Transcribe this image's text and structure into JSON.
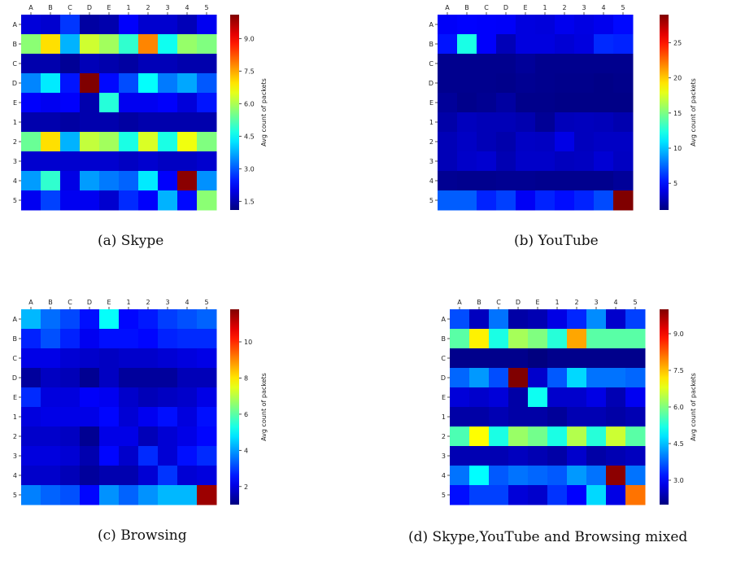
{
  "chart_data": [
    {
      "type": "heatmap",
      "caption": "(a) Skype",
      "labels": [
        "A",
        "B",
        "C",
        "D",
        "E",
        "1",
        "2",
        "3",
        "4",
        "5"
      ],
      "colorbar": {
        "label": "Avg count of packets",
        "min": 1.1,
        "max": 10.1,
        "ticks": [
          1.5,
          3.0,
          4.5,
          6.0,
          7.5,
          9.0
        ],
        "tick_labels": [
          "1.5",
          "3.0",
          "4.5",
          "6.0",
          "7.5",
          "9.0"
        ]
      },
      "values": [
        [
          1.9,
          1.8,
          2.7,
          1.4,
          1.5,
          2.2,
          1.8,
          1.8,
          1.6,
          2.1
        ],
        [
          5.7,
          7.0,
          3.8,
          6.3,
          5.9,
          4.9,
          7.8,
          4.6,
          5.8,
          5.6
        ],
        [
          1.5,
          1.5,
          1.3,
          1.6,
          1.5,
          1.4,
          1.6,
          1.6,
          1.5,
          1.5
        ],
        [
          3.4,
          4.3,
          2.4,
          10.1,
          2.3,
          2.9,
          4.5,
          3.3,
          3.7,
          3.0
        ],
        [
          2.2,
          2.1,
          2.2,
          1.5,
          4.8,
          2.1,
          2.1,
          2.2,
          1.9,
          2.4
        ],
        [
          1.5,
          1.5,
          1.4,
          1.5,
          1.5,
          1.4,
          1.5,
          1.5,
          1.5,
          1.5
        ],
        [
          5.4,
          7.0,
          3.8,
          6.2,
          5.9,
          4.7,
          6.4,
          4.7,
          6.6,
          5.6
        ],
        [
          1.8,
          1.8,
          1.8,
          1.8,
          1.8,
          1.7,
          1.8,
          1.7,
          1.7,
          1.8
        ],
        [
          3.6,
          4.9,
          2.0,
          3.6,
          3.3,
          3.1,
          4.3,
          2.2,
          10.0,
          3.5
        ],
        [
          2.1,
          2.8,
          2.1,
          2.1,
          1.8,
          2.6,
          2.2,
          3.8,
          2.3,
          5.7
        ]
      ]
    },
    {
      "type": "heatmap",
      "caption": "(b) YouTube",
      "labels": [
        "A",
        "B",
        "C",
        "D",
        "E",
        "1",
        "2",
        "3",
        "4",
        "5"
      ],
      "colorbar": {
        "label": "Avg count of packets",
        "min": 1.2,
        "max": 29.0,
        "ticks": [
          5,
          10,
          15,
          20,
          25
        ],
        "tick_labels": [
          "5",
          "10",
          "15",
          "20",
          "25"
        ]
      },
      "values": [
        [
          4.5,
          4.7,
          4.6,
          4.5,
          3.8,
          3.7,
          4.2,
          3.9,
          4.2,
          4.9
        ],
        [
          5.2,
          12.3,
          4.6,
          2.7,
          3.8,
          3.8,
          3.5,
          3.8,
          5.8,
          5.6
        ],
        [
          1.6,
          1.6,
          1.6,
          1.6,
          1.9,
          1.6,
          1.6,
          1.6,
          1.6,
          1.6
        ],
        [
          1.6,
          1.6,
          1.6,
          1.5,
          1.7,
          1.6,
          1.5,
          1.5,
          1.4,
          1.5
        ],
        [
          1.9,
          1.5,
          1.7,
          2.1,
          1.5,
          1.5,
          1.4,
          1.4,
          1.4,
          1.4
        ],
        [
          2.3,
          2.9,
          2.7,
          2.7,
          2.5,
          1.8,
          2.8,
          2.9,
          2.8,
          2.5
        ],
        [
          2.7,
          3.1,
          2.7,
          2.4,
          3.1,
          3.0,
          4.0,
          2.9,
          3.1,
          3.1
        ],
        [
          2.7,
          3.2,
          3.4,
          2.6,
          3.2,
          3.2,
          2.9,
          3.0,
          3.5,
          3.0
        ],
        [
          1.7,
          1.6,
          1.6,
          1.7,
          1.7,
          1.6,
          1.6,
          1.6,
          1.6,
          1.9
        ],
        [
          7.2,
          7.2,
          5.6,
          6.4,
          4.4,
          5.6,
          5.0,
          5.6,
          6.7,
          29.0
        ]
      ]
    },
    {
      "type": "heatmap",
      "caption": "(c) Browsing",
      "labels": [
        "A",
        "B",
        "C",
        "D",
        "E",
        "1",
        "2",
        "3",
        "4",
        "5"
      ],
      "colorbar": {
        "label": "Avg count of packets",
        "min": 1.0,
        "max": 11.8,
        "ticks": [
          2,
          4,
          6,
          8,
          10
        ],
        "tick_labels": [
          "2",
          "4",
          "6",
          "8",
          "10"
        ]
      },
      "values": [
        [
          4.3,
          3.5,
          3.1,
          2.5,
          5.1,
          2.4,
          2.6,
          3.0,
          3.2,
          3.4
        ],
        [
          2.7,
          3.2,
          2.7,
          2.2,
          2.5,
          2.5,
          2.4,
          2.7,
          2.8,
          2.8
        ],
        [
          2.1,
          2.1,
          1.9,
          1.8,
          1.7,
          1.8,
          1.8,
          1.9,
          2.0,
          2.1
        ],
        [
          1.3,
          1.7,
          1.6,
          1.2,
          1.7,
          1.3,
          1.3,
          1.3,
          1.6,
          1.6
        ],
        [
          2.8,
          2.0,
          2.0,
          2.3,
          2.2,
          1.8,
          1.6,
          1.7,
          1.8,
          2.1
        ],
        [
          2.0,
          2.1,
          2.1,
          2.1,
          2.4,
          1.9,
          2.2,
          2.5,
          2.0,
          2.5
        ],
        [
          1.8,
          1.8,
          1.7,
          1.2,
          2.1,
          2.1,
          1.6,
          1.9,
          2.1,
          2.4
        ],
        [
          2.0,
          2.0,
          1.9,
          1.5,
          2.4,
          1.8,
          2.8,
          1.9,
          2.5,
          2.8
        ],
        [
          1.8,
          1.8,
          1.6,
          1.3,
          1.5,
          1.5,
          1.9,
          2.9,
          1.9,
          2.0
        ],
        [
          3.7,
          3.4,
          3.2,
          2.4,
          3.9,
          3.4,
          3.9,
          4.3,
          4.3,
          11.5
        ]
      ]
    },
    {
      "type": "heatmap",
      "caption": "(d) Skype,YouTube and Browsing mixed",
      "labels": [
        "A",
        "B",
        "C",
        "D",
        "E",
        "1",
        "2",
        "3",
        "4",
        "5"
      ],
      "colorbar": {
        "label": "Avg count of packets",
        "min": 2.0,
        "max": 10.0,
        "ticks": [
          3.0,
          4.5,
          6.0,
          7.5,
          9.0
        ],
        "tick_labels": [
          "3.0",
          "4.5",
          "6.0",
          "7.5",
          "9.0"
        ]
      },
      "values": [
        [
          3.6,
          2.5,
          3.9,
          2.3,
          2.4,
          2.8,
          3.3,
          4.1,
          2.6,
          3.5
        ],
        [
          5.7,
          7.1,
          5.2,
          6.3,
          6.0,
          5.3,
          7.7,
          5.7,
          5.7,
          5.7
        ],
        [
          2.1,
          2.1,
          2.1,
          2.1,
          2.0,
          2.1,
          2.1,
          2.1,
          2.1,
          2.1
        ],
        [
          3.8,
          4.2,
          3.6,
          10.0,
          2.6,
          3.7,
          4.7,
          3.9,
          3.9,
          3.8
        ],
        [
          2.7,
          2.6,
          2.7,
          2.3,
          5.1,
          2.6,
          2.6,
          2.8,
          2.4,
          2.9
        ],
        [
          2.3,
          2.3,
          2.4,
          2.3,
          2.3,
          2.2,
          2.4,
          2.4,
          2.3,
          2.4
        ],
        [
          5.6,
          7.0,
          5.2,
          6.2,
          5.9,
          5.2,
          6.4,
          5.3,
          6.6,
          5.7
        ],
        [
          2.4,
          2.4,
          2.4,
          2.5,
          2.4,
          2.3,
          2.6,
          2.3,
          2.4,
          2.5
        ],
        [
          3.9,
          5.0,
          3.7,
          3.9,
          3.8,
          3.7,
          4.2,
          3.9,
          9.9,
          3.9
        ],
        [
          3.1,
          3.5,
          3.5,
          2.7,
          2.6,
          3.4,
          3.0,
          4.7,
          2.8,
          8.1
        ]
      ]
    }
  ]
}
